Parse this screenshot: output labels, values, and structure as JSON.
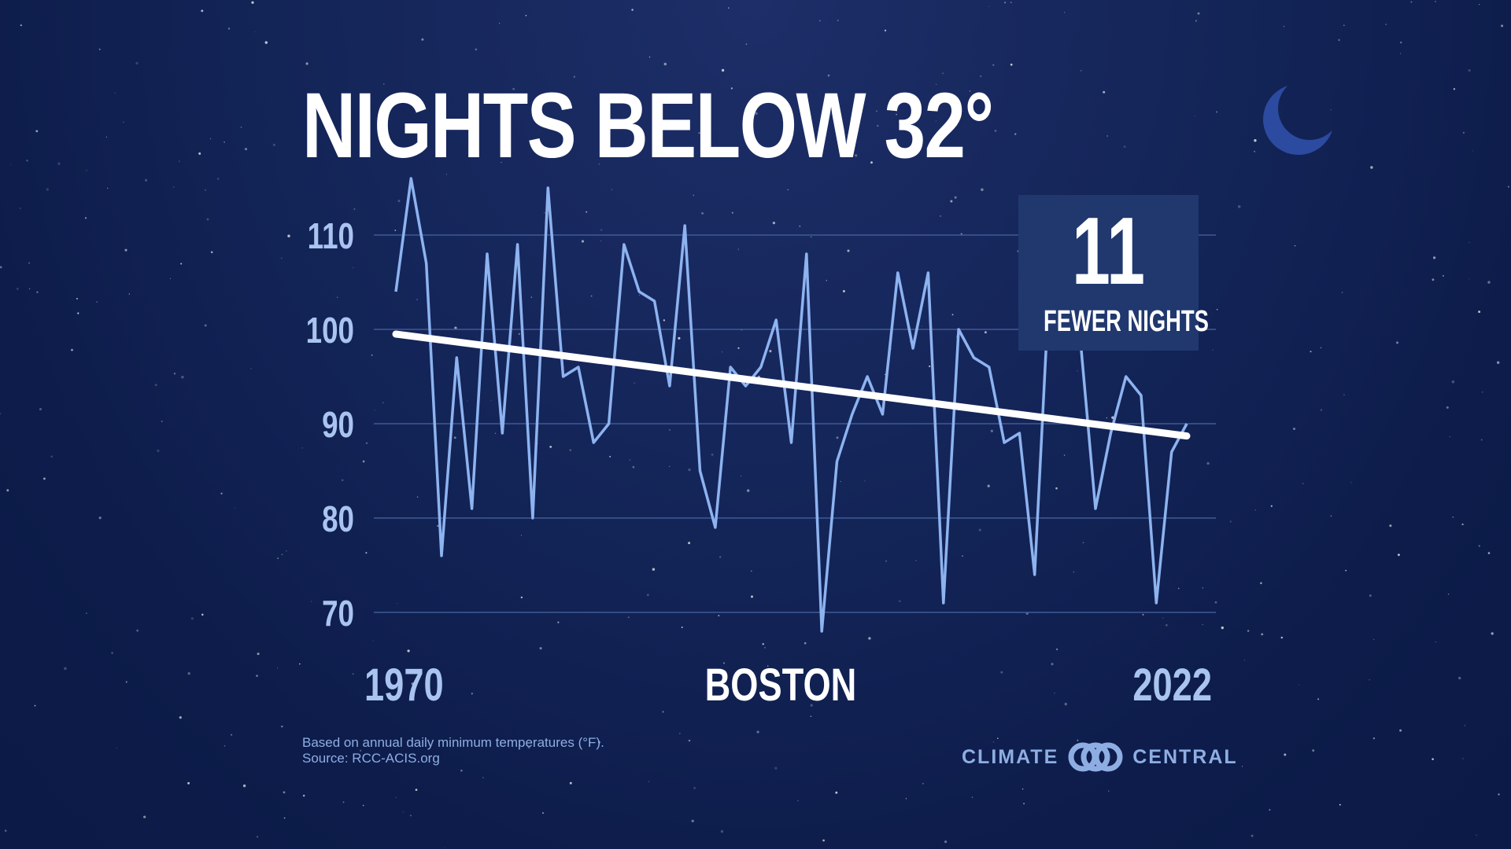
{
  "title": "NIGHTS BELOW 32°",
  "callout": {
    "number": "11",
    "label": "FEWER NIGHTS"
  },
  "x_axis": {
    "start_label": "1970",
    "end_label": "2022"
  },
  "location": "BOSTON",
  "footnote": {
    "line1": "Based on annual daily minimum temperatures (°F).",
    "line2": "Source: RCC-ACIS.org"
  },
  "brand": {
    "left": "CLIMATE",
    "right": "CENTRAL"
  },
  "colors": {
    "background": "#132457",
    "series": "#8db3f0",
    "trend": "#ffffff",
    "tick_label": "#a9c4ee",
    "callout_bg": "#20386e",
    "moon": "#2c4aa0"
  },
  "icons": {
    "moon": "crescent-moon-icon",
    "logo": "climate-central-logo-icon"
  },
  "chart_data": {
    "type": "line",
    "title": "NIGHTS BELOW 32°",
    "xlabel": "",
    "ylabel": "",
    "x": [
      1970,
      1971,
      1972,
      1973,
      1974,
      1975,
      1976,
      1977,
      1978,
      1979,
      1980,
      1981,
      1982,
      1983,
      1984,
      1985,
      1986,
      1987,
      1988,
      1989,
      1990,
      1991,
      1992,
      1993,
      1994,
      1995,
      1996,
      1997,
      1998,
      1999,
      2000,
      2001,
      2002,
      2003,
      2004,
      2005,
      2006,
      2007,
      2008,
      2009,
      2010,
      2011,
      2012,
      2013,
      2014,
      2015,
      2016,
      2017,
      2018,
      2019,
      2020,
      2021,
      2022
    ],
    "series": [
      {
        "name": "",
        "values": [
          104,
          116,
          107,
          76,
          97,
          81,
          108,
          89,
          109,
          80,
          115,
          95,
          96,
          88,
          90,
          109,
          104,
          103,
          94,
          111,
          85,
          79,
          96,
          94,
          96,
          101,
          88,
          108,
          68,
          86,
          91,
          95,
          91,
          106,
          98,
          106,
          71,
          100,
          97,
          96,
          88,
          89,
          74,
          106,
          100,
          99,
          81,
          89,
          95,
          93,
          71,
          87,
          90
        ]
      },
      {
        "name": "",
        "values": [
          99.5,
          88.7
        ],
        "x": [
          1970,
          2022
        ]
      }
    ],
    "yticks": [
      70,
      80,
      90,
      100,
      110
    ],
    "ylim": [
      67,
      117
    ],
    "xlim": [
      1970,
      2022
    ],
    "grid": true,
    "annotation": "11 FEWER NIGHTS"
  }
}
